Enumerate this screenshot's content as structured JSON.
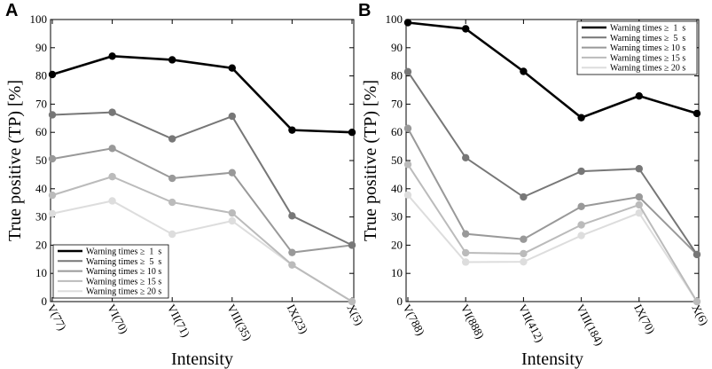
{
  "chart_data": [
    {
      "type": "line",
      "panel_label": "A",
      "categories": [
        "V(77)",
        "VI(70)",
        "VII(71)",
        "VIII(35)",
        "IX(23)",
        "X(5)"
      ],
      "xlabel": "Intensity",
      "ylabel": "True positive (TP) [%]",
      "ylim": [
        0,
        100
      ],
      "yticks": [
        "0",
        "10",
        "20",
        "30",
        "40",
        "50",
        "60",
        "70",
        "80",
        "90",
        "100"
      ],
      "legend_position": "bottom-left",
      "series": [
        {
          "name": "Warning times ≥  1  s",
          "color": "#000000",
          "values": [
            80.5,
            87.0,
            85.7,
            82.8,
            60.8,
            60.0
          ]
        },
        {
          "name": "Warning times ≥  5  s",
          "color": "#777777",
          "values": [
            66.2,
            67.1,
            57.7,
            65.7,
            30.4,
            20.0
          ]
        },
        {
          "name": "Warning times ≥ 10 s",
          "color": "#999999",
          "values": [
            50.6,
            54.3,
            43.7,
            45.7,
            17.4,
            20.0
          ]
        },
        {
          "name": "Warning times ≥ 15 s",
          "color": "#bbbbbb",
          "values": [
            37.7,
            44.3,
            35.2,
            31.4,
            13.0,
            0.0
          ]
        },
        {
          "name": "Warning times ≥ 20 s",
          "color": "#dddddd",
          "values": [
            31.2,
            35.7,
            23.9,
            28.6,
            13.0,
            0.0
          ]
        }
      ]
    },
    {
      "type": "line",
      "panel_label": "B",
      "categories": [
        "V(788)",
        "VI(888)",
        "VII(412)",
        "VIII(184)",
        "IX(70)",
        "X(6)"
      ],
      "xlabel": "Intensity",
      "ylabel": "True positive (TP) [%]",
      "ylim": [
        0,
        100
      ],
      "yticks": [
        "0",
        "10",
        "20",
        "30",
        "40",
        "50",
        "60",
        "70",
        "80",
        "90",
        "100"
      ],
      "legend_position": "top-right",
      "series": [
        {
          "name": "Warning times ≥  1  s",
          "color": "#000000",
          "values": [
            98.9,
            96.7,
            81.6,
            65.2,
            72.9,
            66.7
          ]
        },
        {
          "name": "Warning times ≥  5  s",
          "color": "#777777",
          "values": [
            81.5,
            51.0,
            37.1,
            46.2,
            47.1,
            16.7
          ]
        },
        {
          "name": "Warning times ≥ 10 s",
          "color": "#999999",
          "values": [
            61.4,
            24.0,
            22.1,
            33.7,
            37.1,
            16.7
          ]
        },
        {
          "name": "Warning times ≥ 15 s",
          "color": "#bbbbbb",
          "values": [
            48.6,
            17.3,
            17.0,
            27.2,
            34.3,
            0.0
          ]
        },
        {
          "name": "Warning times ≥ 20 s",
          "color": "#dddddd",
          "values": [
            37.8,
            14.0,
            14.1,
            23.4,
            31.4,
            0.0
          ]
        }
      ]
    }
  ]
}
